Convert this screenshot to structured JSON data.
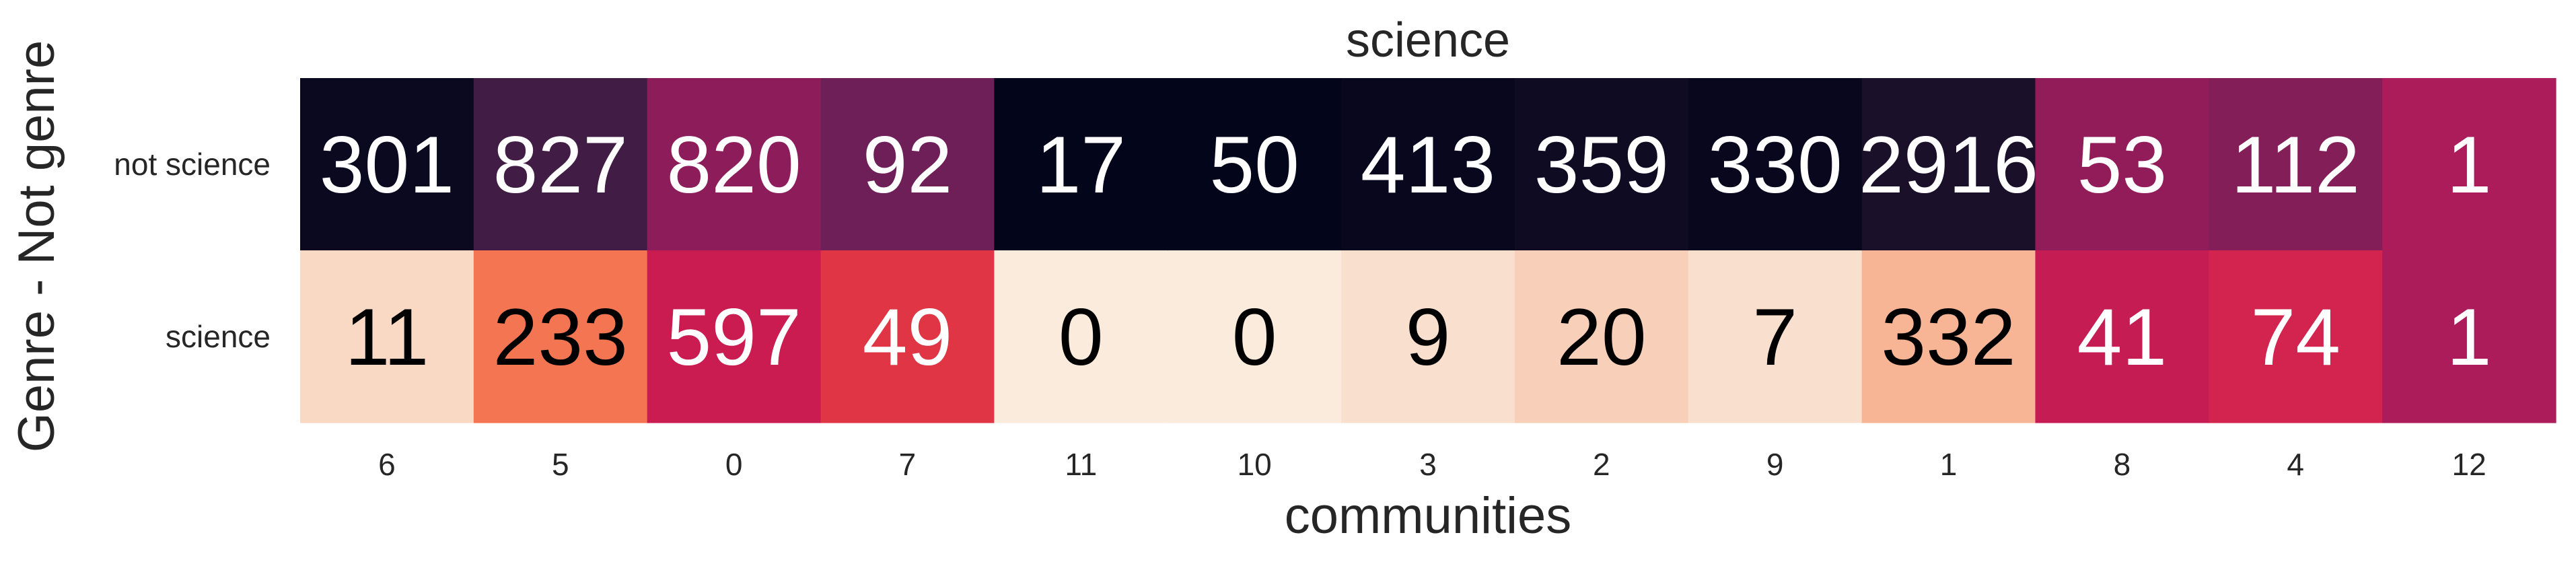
{
  "chart_data": {
    "type": "heatmap",
    "title": "science",
    "xlabel": "communities",
    "ylabel": "Genre - Not genre",
    "x_categories": [
      "6",
      "5",
      "0",
      "7",
      "11",
      "10",
      "3",
      "2",
      "9",
      "1",
      "8",
      "4",
      "12"
    ],
    "y_categories": [
      "not science",
      "science"
    ],
    "values": [
      [
        301,
        827,
        820,
        92,
        17,
        50,
        413,
        359,
        330,
        2916,
        53,
        112,
        1
      ],
      [
        11,
        233,
        597,
        49,
        0,
        0,
        9,
        20,
        7,
        332,
        41,
        74,
        1
      ]
    ],
    "normalized_by_column": true,
    "colormap": "rocket",
    "colorbar": false,
    "grid": false
  }
}
